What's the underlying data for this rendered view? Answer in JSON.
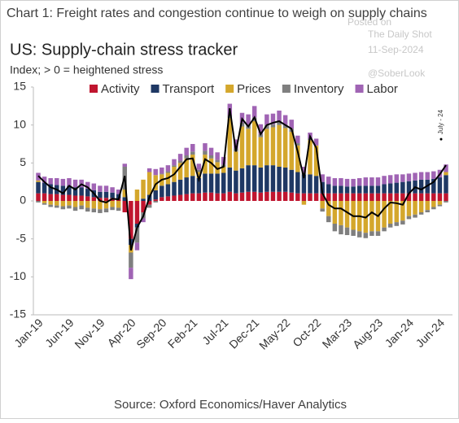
{
  "chart_data": {
    "type": "stacked_bar_line",
    "title": "Chart 1: Freight rates and congestion continue to weigh on supply chains",
    "subtitle": "US: Supply-chain stress tracker",
    "y_label": "Index; > 0 = heightened stress",
    "source": "Source: Oxford Economics/Haver Analytics",
    "watermark": [
      "Posted on",
      "The Daily Shot",
      "11-Sep-2024",
      "@SoberLook"
    ],
    "annotation": "July - 24",
    "categories": [
      "Jan-19",
      null,
      null,
      null,
      null,
      "Jun-19",
      null,
      null,
      null,
      null,
      "Nov-19",
      null,
      null,
      null,
      null,
      "Apr-20",
      null,
      null,
      null,
      null,
      "Sep-20",
      null,
      null,
      null,
      null,
      "Feb-21",
      null,
      null,
      null,
      null,
      "Jul-21",
      null,
      null,
      null,
      null,
      "Dec-21",
      null,
      null,
      null,
      null,
      "May-22",
      null,
      null,
      null,
      null,
      "Oct-22",
      null,
      null,
      null,
      null,
      "Mar-23",
      null,
      null,
      null,
      null,
      "Aug-23",
      null,
      null,
      null,
      null,
      "Jan-24",
      null,
      null,
      null,
      null,
      "Jun-24",
      null
    ],
    "series": [
      {
        "name": "Activity",
        "color": "#c0152f",
        "values": [
          1.0,
          1.0,
          0.9,
          0.9,
          0.8,
          0.8,
          0.7,
          0.7,
          0.6,
          0.5,
          0.4,
          0.4,
          0.4,
          0.3,
          -1.5,
          -5.0,
          -3.0,
          -1.5,
          -0.5,
          0.2,
          0.5,
          0.6,
          0.7,
          0.8,
          0.9,
          1.0,
          1.0,
          1.1,
          1.1,
          1.0,
          1.0,
          1.2,
          1.0,
          1.1,
          1.2,
          1.2,
          1.1,
          1.2,
          1.2,
          1.2,
          1.2,
          1.1,
          1.0,
          1.0,
          1.0,
          1.0,
          1.0,
          1.0,
          1.0,
          1.0,
          1.0,
          1.0,
          1.0,
          1.0,
          1.0,
          1.0,
          1.0,
          1.0,
          1.0,
          1.0,
          1.0,
          1.0,
          1.0,
          1.0,
          1.0,
          1.0,
          1.0
        ]
      },
      {
        "name": "Transport",
        "color": "#1f3864",
        "values": [
          1.5,
          1.4,
          1.3,
          1.2,
          1.2,
          1.2,
          1.1,
          1.1,
          1.0,
          0.9,
          0.8,
          0.8,
          0.7,
          0.6,
          0.5,
          -0.8,
          -0.5,
          0.3,
          0.8,
          1.2,
          1.5,
          1.6,
          1.8,
          2.0,
          2.2,
          2.3,
          2.0,
          2.5,
          2.5,
          2.6,
          2.7,
          3.2,
          3.0,
          3.2,
          3.5,
          3.5,
          3.3,
          3.5,
          3.5,
          3.3,
          3.2,
          3.0,
          2.8,
          2.5,
          2.5,
          2.3,
          1.5,
          1.2,
          1.0,
          1.0,
          0.9,
          0.9,
          1.0,
          1.0,
          1.0,
          1.0,
          1.2,
          1.3,
          1.4,
          1.5,
          1.6,
          1.7,
          1.8,
          1.8,
          1.9,
          2.1,
          2.4
        ]
      },
      {
        "name": "Prices",
        "color": "#d4a72c",
        "values": [
          0.2,
          -0.3,
          -0.5,
          -0.6,
          -0.7,
          -0.6,
          -0.8,
          -0.6,
          -0.9,
          -1.0,
          -1.1,
          -1.0,
          -0.8,
          -0.9,
          1.0,
          -1.0,
          1.5,
          2.5,
          3.0,
          2.0,
          1.5,
          1.5,
          2.0,
          2.2,
          2.5,
          2.8,
          0.8,
          2.5,
          2.0,
          1.5,
          0.8,
          6.5,
          2.5,
          5.5,
          4.8,
          5.8,
          4.0,
          4.8,
          5.0,
          5.5,
          5.2,
          5.0,
          3.5,
          -0.5,
          4.5,
          4.0,
          -1.0,
          -2.0,
          -3.0,
          -3.2,
          -3.5,
          -3.8,
          -4.0,
          -4.2,
          -4.0,
          -4.0,
          -3.5,
          -3.0,
          -2.8,
          -2.6,
          -2.0,
          -1.8,
          -1.5,
          -1.2,
          -0.8,
          -0.5,
          0.4
        ]
      },
      {
        "name": "Inventory",
        "color": "#7f7f7f",
        "values": [
          -0.2,
          -0.2,
          -0.3,
          -0.3,
          -0.4,
          -0.4,
          -0.5,
          -0.5,
          -0.5,
          -0.5,
          -0.5,
          -0.5,
          -0.4,
          -0.4,
          3.0,
          -2.0,
          -2.0,
          -0.8,
          -0.4,
          -0.2,
          0.1,
          0.2,
          0.2,
          0.3,
          0.4,
          0.4,
          0.3,
          0.5,
          0.4,
          0.3,
          0.3,
          0.4,
          0.4,
          0.5,
          0.5,
          0.5,
          0.4,
          0.5,
          0.4,
          0.5,
          0.4,
          0.4,
          0.3,
          0.2,
          0.2,
          0.0,
          -0.4,
          -0.8,
          -1.0,
          -1.2,
          -1.0,
          -0.8,
          -0.8,
          -0.7,
          -0.6,
          -0.6,
          -0.5,
          -0.5,
          -0.5,
          -0.5,
          -0.4,
          -0.4,
          -0.3,
          -0.3,
          -0.3,
          -0.2,
          -0.2
        ]
      },
      {
        "name": "Labor",
        "color": "#a064b4",
        "values": [
          1.0,
          0.8,
          0.8,
          0.9,
          0.9,
          1.0,
          1.0,
          1.0,
          0.9,
          0.9,
          0.8,
          0.8,
          0.7,
          0.6,
          0.4,
          -1.5,
          -1.0,
          -0.5,
          0.5,
          0.8,
          0.8,
          0.8,
          0.8,
          0.9,
          1.0,
          1.0,
          0.8,
          1.0,
          1.0,
          1.0,
          1.0,
          1.5,
          1.2,
          1.3,
          1.4,
          1.5,
          1.3,
          1.4,
          1.4,
          1.4,
          1.3,
          1.2,
          1.0,
          0.8,
          0.8,
          0.9,
          1.0,
          1.0,
          1.0,
          1.0,
          1.0,
          1.0,
          1.0,
          1.1,
          1.1,
          1.1,
          1.1,
          1.1,
          1.1,
          1.0,
          1.0,
          1.0,
          1.0,
          1.0,
          1.0,
          1.0,
          1.0
        ]
      }
    ],
    "line": {
      "color": "#000000",
      "values": [
        3.3,
        2.5,
        1.8,
        1.5,
        1.0,
        2.0,
        1.5,
        2.2,
        1.8,
        1.0,
        0.0,
        -0.2,
        0.3,
        0.2,
        3.3,
        -6.5,
        -3.5,
        -2.0,
        0.5,
        2.2,
        2.8,
        3.0,
        3.5,
        4.5,
        5.5,
        5.6,
        2.8,
        5.5,
        5.0,
        4.2,
        4.5,
        12.2,
        6.5,
        10.8,
        9.8,
        11.0,
        8.8,
        10.0,
        10.3,
        10.5,
        10.0,
        9.5,
        6.5,
        3.0,
        8.5,
        7.0,
        1.0,
        -0.5,
        -1.0,
        -1.0,
        -1.5,
        -2.0,
        -2.0,
        -2.2,
        -1.5,
        -2.0,
        -1.0,
        -0.2,
        -0.3,
        -0.5,
        1.0,
        1.8,
        1.5,
        2.0,
        2.5,
        3.5,
        4.7
      ]
    },
    "ylim": [
      -15,
      15
    ],
    "yticks": [
      15,
      10,
      5,
      0,
      -5,
      -10,
      -15
    ],
    "legend": "top"
  }
}
